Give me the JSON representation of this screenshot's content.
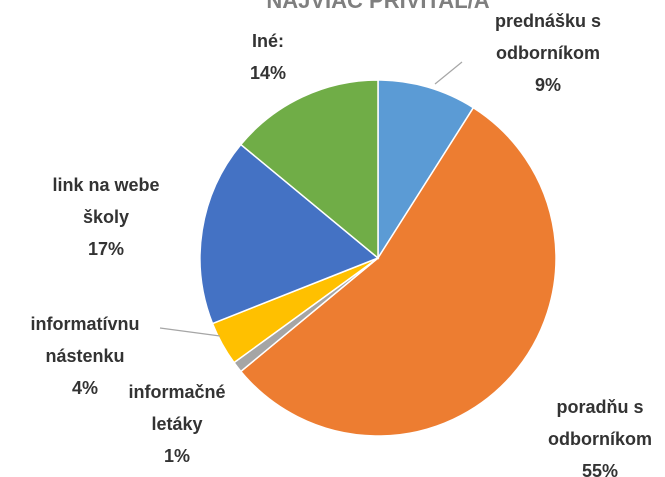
{
  "chart_data": {
    "type": "pie",
    "title": "NAJVIAC PRIVÍTAL/A",
    "categories": [
      [
        "prednášku s",
        "odborníkom"
      ],
      [
        "poradňu s",
        "odborníkom"
      ],
      [
        "informačné",
        "letáky"
      ],
      [
        "informatívnu",
        "nástenku"
      ],
      [
        "link na webe",
        "školy"
      ],
      [
        "Iné:"
      ]
    ],
    "values": [
      9,
      55,
      1,
      4,
      17,
      14
    ],
    "value_labels": [
      "9%",
      "55%",
      "1%",
      "4%",
      "17%",
      "14%"
    ],
    "colors": [
      "#5b9bd5",
      "#ed7d31",
      "#a5a5a5",
      "#ffc000",
      "#4472c4",
      "#70ad47"
    ]
  }
}
